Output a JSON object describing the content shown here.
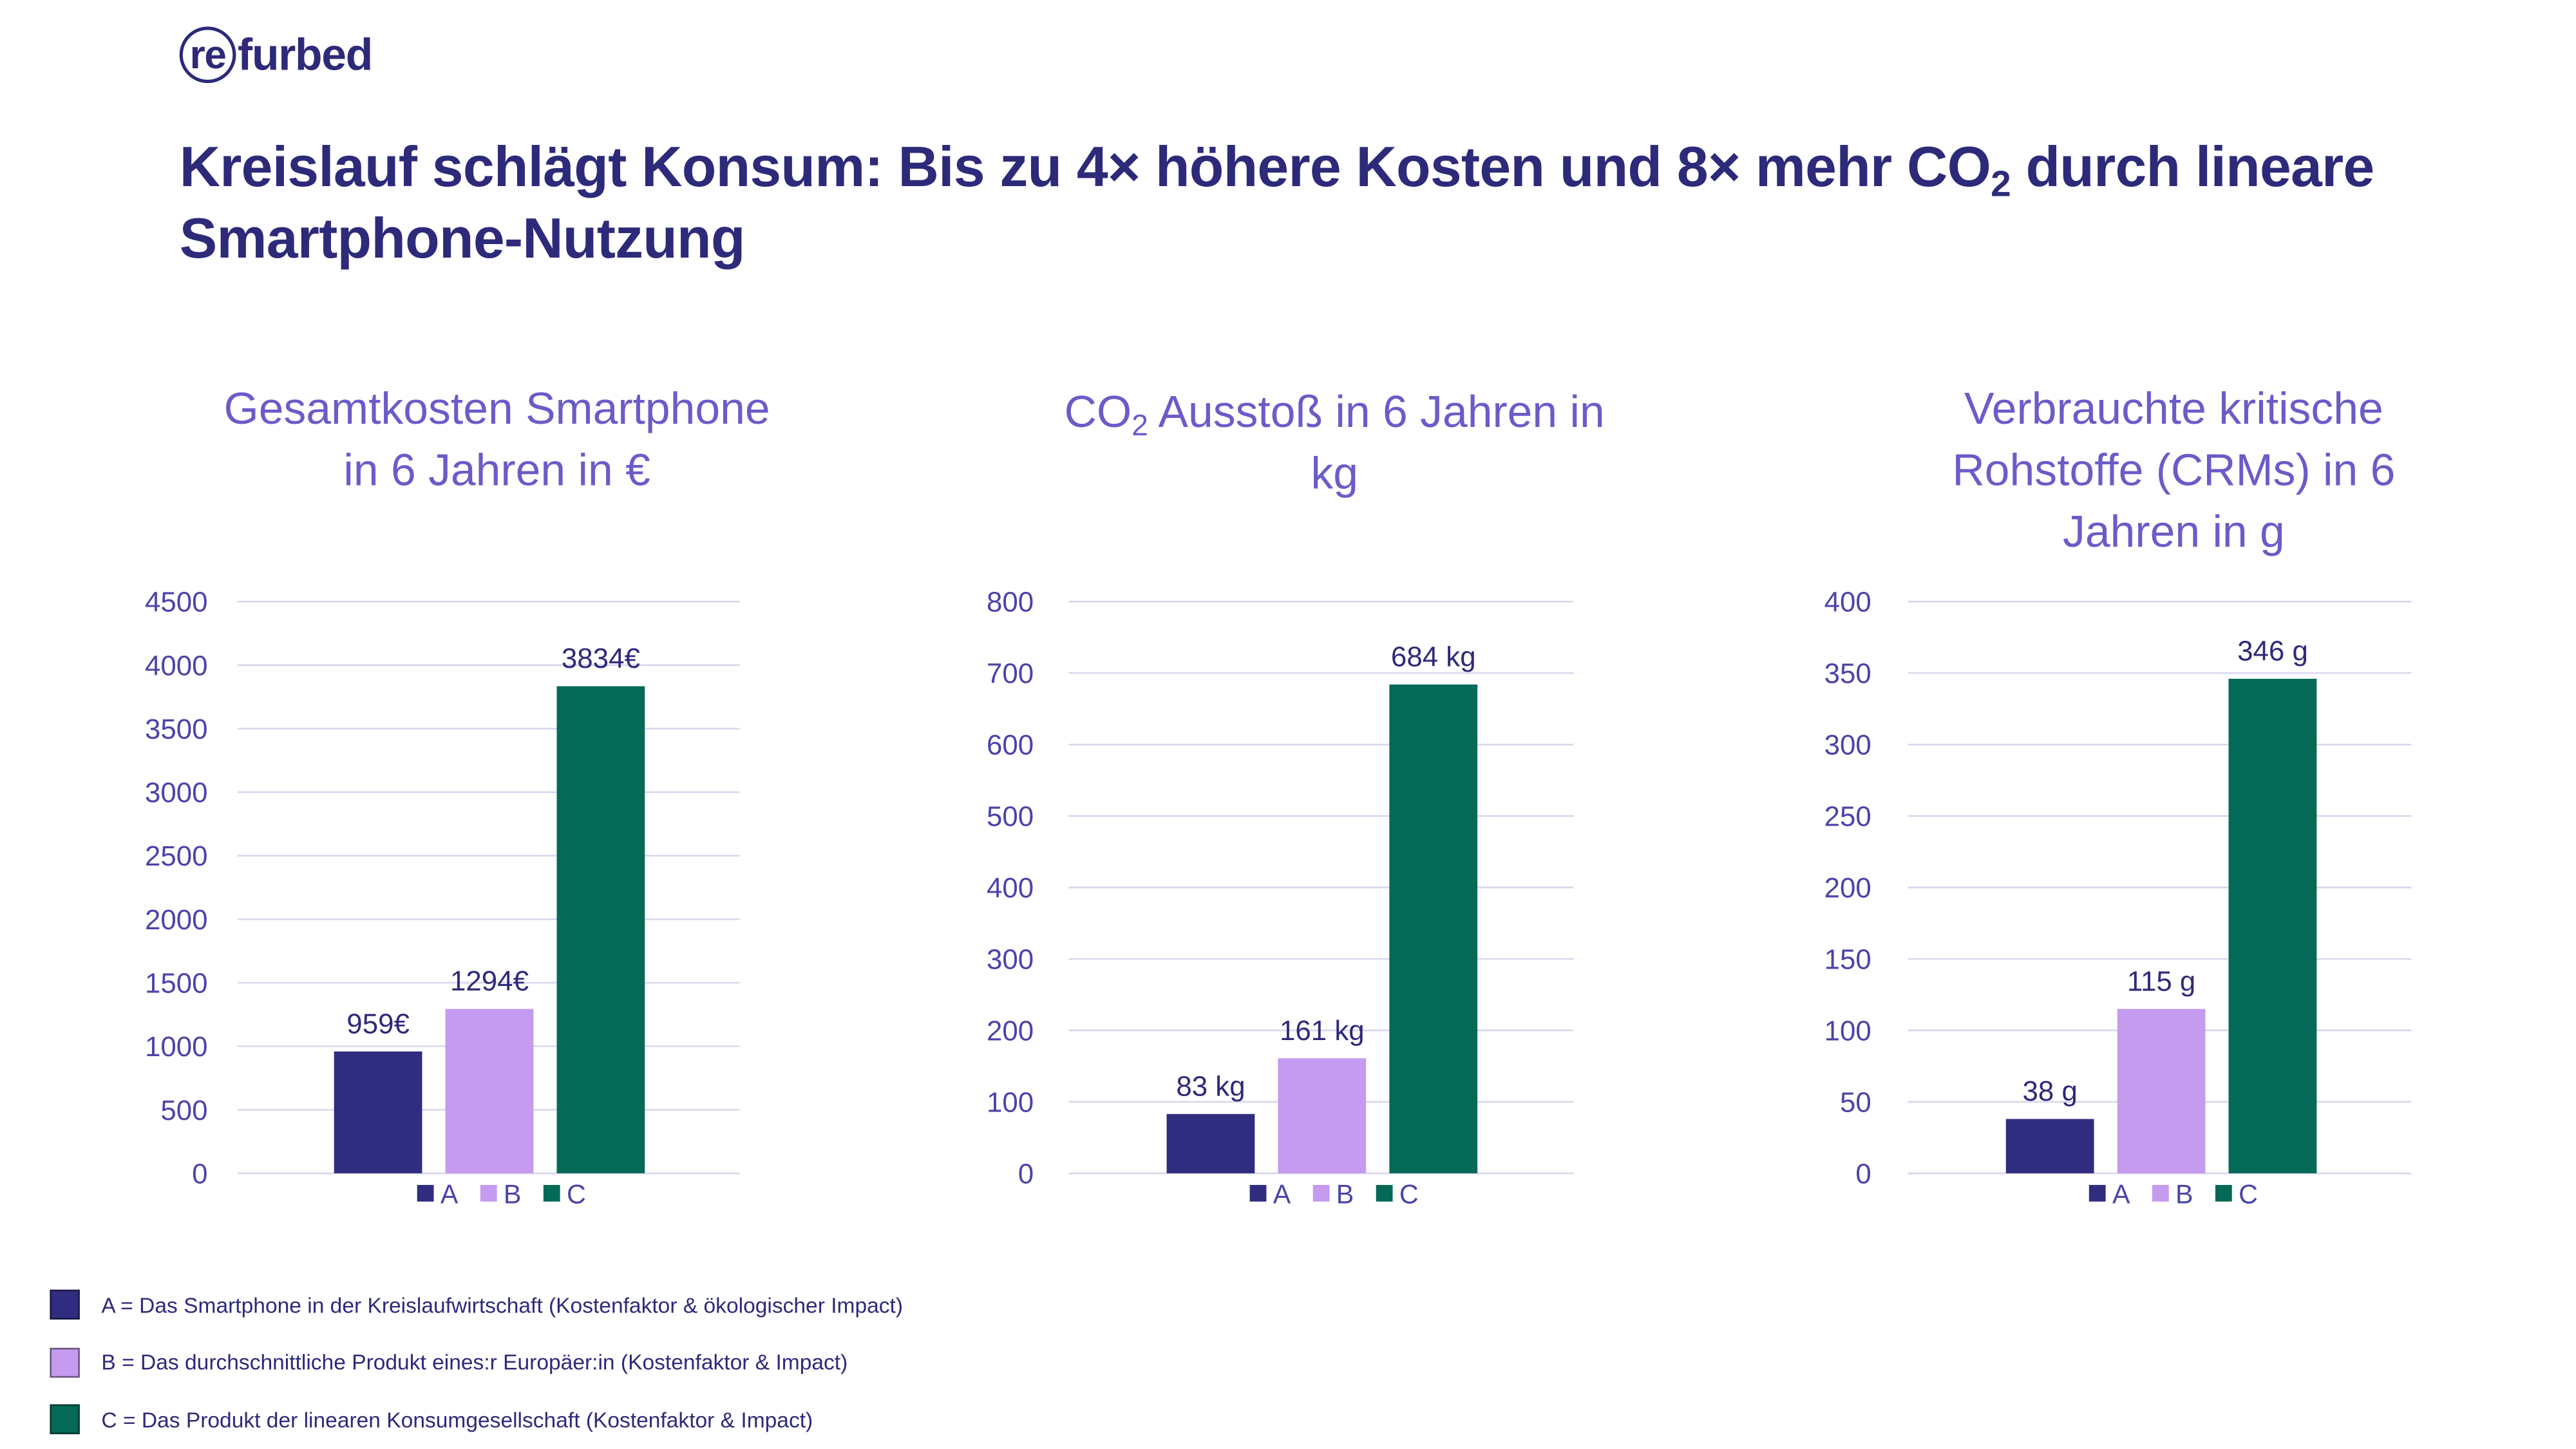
{
  "logo": {
    "ring": "re",
    "rest": "furbed"
  },
  "title": {
    "part1": "Kreislauf schlägt Konsum: Bis zu 4× höhere Kosten und 8× mehr CO",
    "sub": "2",
    "part2": " durch lineare Smartphone-Nutzung"
  },
  "colors": {
    "A": "#302c80",
    "B": "#c49bee",
    "C": "#046a57",
    "axis_text": "#4b44a8",
    "grid": "#d9d6ee"
  },
  "chart_data": [
    {
      "type": "bar",
      "title_lines": [
        "Gesamtkosten Smartphone",
        "in 6 Jahren in €"
      ],
      "categories": [
        "A",
        "B",
        "C"
      ],
      "values": [
        959,
        1294,
        3834
      ],
      "data_labels": [
        "959€",
        "1294€",
        "3834€"
      ],
      "ylim": [
        0,
        4500
      ],
      "yticks": [
        "0",
        "500",
        "1000",
        "1500",
        "2000",
        "2500",
        "3000",
        "3500",
        "4000",
        "4500"
      ],
      "grid": true,
      "legend": "bottom"
    },
    {
      "type": "bar",
      "title_lines": [
        "CO|2| Ausstoß in 6 Jahren in",
        "kg"
      ],
      "categories": [
        "A",
        "B",
        "C"
      ],
      "values": [
        83,
        161,
        684
      ],
      "data_labels": [
        "83 kg",
        "161 kg",
        "684 kg"
      ],
      "ylim": [
        0,
        800
      ],
      "yticks": [
        "0",
        "100",
        "200",
        "300",
        "400",
        "500",
        "600",
        "700",
        "800"
      ],
      "grid": true,
      "legend": "bottom"
    },
    {
      "type": "bar",
      "title_lines": [
        "Verbrauchte kritische",
        "Rohstoffe (CRMs) in 6",
        "Jahren in g"
      ],
      "categories": [
        "A",
        "B",
        "C"
      ],
      "values": [
        38,
        115,
        346
      ],
      "data_labels": [
        "38 g",
        "115 g",
        "346 g"
      ],
      "ylim": [
        0,
        400
      ],
      "yticks": [
        "0",
        "50",
        "100",
        "150",
        "200",
        "250",
        "300",
        "350",
        "400"
      ],
      "grid": true,
      "legend": "bottom"
    }
  ],
  "legend": [
    {
      "key": "A",
      "text": "A = Das Smartphone in der Kreislaufwirtschaft (Kostenfaktor & ökologischer Impact)"
    },
    {
      "key": "B",
      "text": "B = Das durchschnittliche Produkt eines:r Europäer:in (Kostenfaktor & Impact)"
    },
    {
      "key": "C",
      "text": "C = Das Produkt der linearen Konsumgesellschaft (Kostenfaktor & Impact)"
    }
  ]
}
